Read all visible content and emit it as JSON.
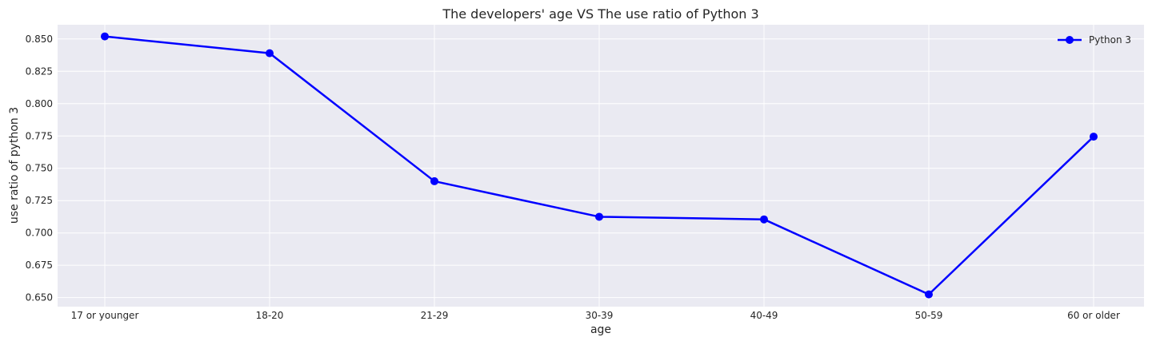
{
  "chart_data": {
    "type": "line",
    "title": "The developers' age VS The use ratio of Python 3",
    "xlabel": "age",
    "ylabel": "use ratio of python 3",
    "categories": [
      "17 or younger",
      "18-20",
      "21-29",
      "30-39",
      "40-49",
      "50-59",
      "60 or older"
    ],
    "series": [
      {
        "name": "Python 3",
        "color": "#0000ff",
        "marker": "circle",
        "values": [
          0.852,
          0.839,
          0.74,
          0.7125,
          0.7105,
          0.6525,
          0.7745
        ]
      }
    ],
    "ylim": [
      0.643,
      0.861
    ],
    "yticks": [
      "0.650",
      "0.675",
      "0.700",
      "0.725",
      "0.750",
      "0.775",
      "0.800",
      "0.825",
      "0.850"
    ],
    "grid": true,
    "legend_position": "top-right",
    "background_color": "#eaeaf2",
    "grid_color": "#ffffff"
  }
}
